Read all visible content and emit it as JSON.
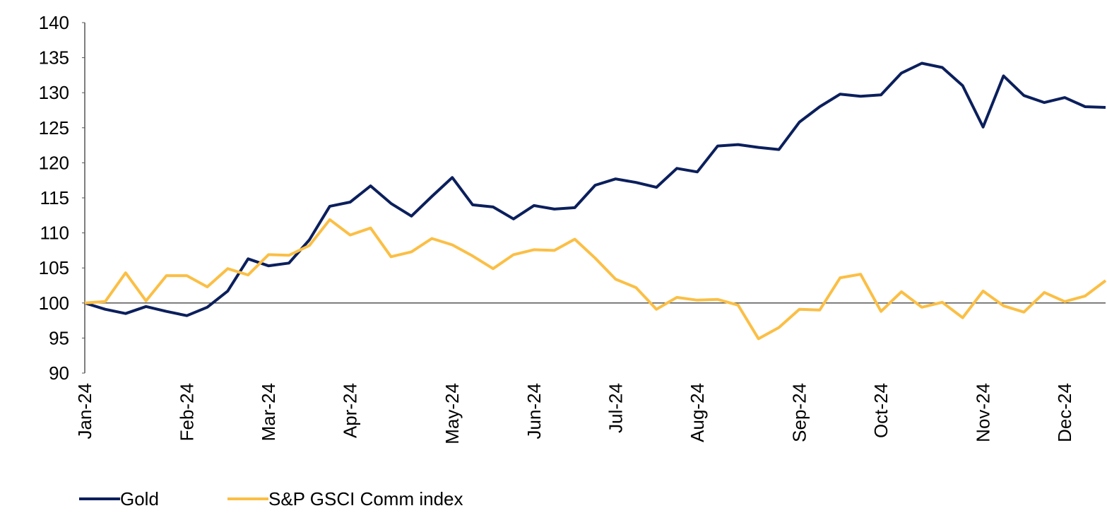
{
  "chart_data": {
    "type": "line",
    "categories": [
      "Jan-24",
      null,
      null,
      null,
      null,
      "Feb-24",
      null,
      null,
      null,
      "Mar-24",
      null,
      null,
      null,
      "Apr-24",
      null,
      null,
      null,
      null,
      "May-24",
      null,
      null,
      null,
      "Jun-24",
      null,
      null,
      null,
      "Jul-24",
      null,
      null,
      null,
      "Aug-24",
      null,
      null,
      null,
      null,
      "Sep-24",
      null,
      null,
      null,
      "Oct-24",
      null,
      null,
      null,
      null,
      "Nov-24",
      null,
      null,
      null,
      "Dec-24",
      null,
      null
    ],
    "series": [
      {
        "name": "Gold",
        "color": "#0b1f5c",
        "values": [
          100,
          99.1,
          98.5,
          99.5,
          98.8,
          98.2,
          99.4,
          101.7,
          106.3,
          105.3,
          105.7,
          109,
          113.8,
          114.4,
          116.7,
          114.2,
          112.4,
          115.2,
          117.9,
          114,
          113.7,
          112,
          113.9,
          113.4,
          113.6,
          116.8,
          117.7,
          117.2,
          116.5,
          119.2,
          118.7,
          122.4,
          122.6,
          122.2,
          121.9,
          125.8,
          128,
          129.8,
          129.5,
          129.7,
          132.8,
          134.2,
          133.6,
          131,
          125.1,
          132.4,
          129.6,
          128.6,
          129.3,
          128,
          127.9
        ]
      },
      {
        "name": "S&P GSCI Comm index",
        "color": "#fbbf45",
        "values": [
          100,
          100.2,
          104.3,
          100.3,
          103.9,
          103.9,
          102.3,
          104.9,
          104,
          106.9,
          106.8,
          108.2,
          111.9,
          109.7,
          110.7,
          106.6,
          107.3,
          109.2,
          108.3,
          106.7,
          104.9,
          106.9,
          107.6,
          107.5,
          109.1,
          106.4,
          103.4,
          102.2,
          99.1,
          100.8,
          100.4,
          100.5,
          99.7,
          94.9,
          96.5,
          99.1,
          99,
          103.6,
          104.1,
          98.8,
          101.6,
          99.4,
          100.1,
          97.9,
          101.7,
          99.6,
          98.7,
          101.5,
          100.2,
          101,
          103.2
        ]
      }
    ],
    "ylim": [
      90,
      140
    ],
    "yticks": [
      90,
      95,
      100,
      105,
      110,
      115,
      120,
      125,
      130,
      135,
      140
    ],
    "hline": 100,
    "legend": "bottom-left"
  }
}
